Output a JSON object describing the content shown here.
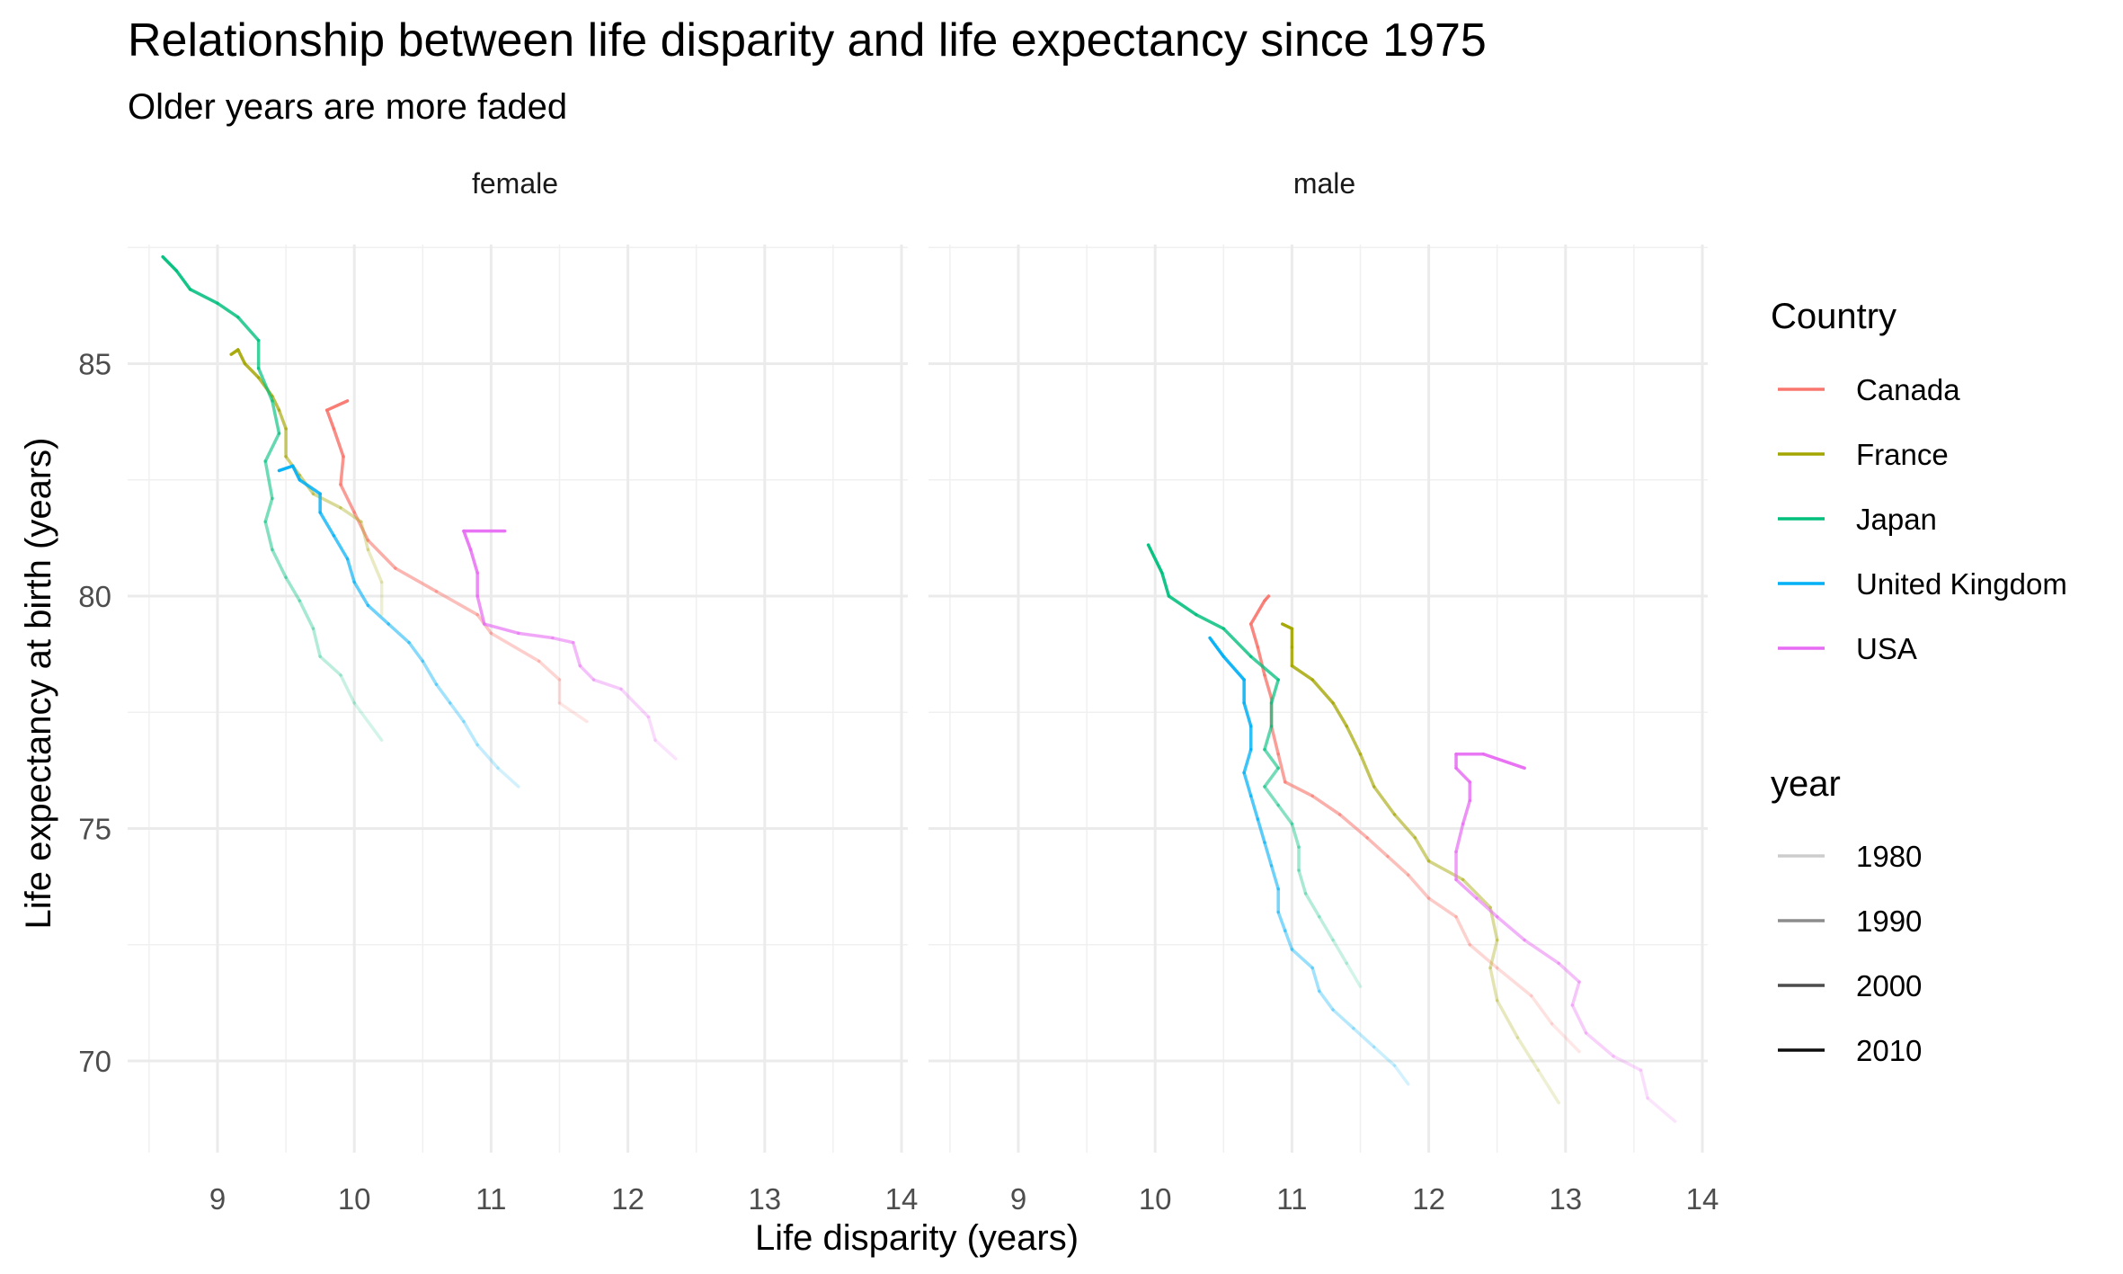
{
  "chart_data": {
    "type": "line",
    "title": "Relationship between life disparity and life expectancy since 1975",
    "subtitle": "Older years are more faded",
    "xlabel": "Life disparity (years)",
    "ylabel": "Life expectancy at birth (years)",
    "xlim": [
      8.5,
      14.0
    ],
    "ylim": [
      68.0,
      88.0
    ],
    "x_ticks": [
      "9",
      "10",
      "11",
      "12",
      "13",
      "14"
    ],
    "y_ticks": [
      "70",
      "75",
      "80",
      "85"
    ],
    "grid": true,
    "legend_position": "right",
    "facets": [
      "female",
      "male"
    ],
    "color_legend": {
      "title": "Country",
      "entries": [
        {
          "label": "Canada",
          "color": "#F8766D"
        },
        {
          "label": "France",
          "color": "#A3A500"
        },
        {
          "label": "Japan",
          "color": "#00BF7D"
        },
        {
          "label": "United Kingdom",
          "color": "#00B0F6"
        },
        {
          "label": "USA",
          "color": "#E76BF3"
        }
      ]
    },
    "alpha_legend": {
      "title": "year",
      "entries": [
        {
          "label": "1980",
          "alpha": 0.2
        },
        {
          "label": "1990",
          "alpha": 0.45
        },
        {
          "label": "2000",
          "alpha": 0.7
        },
        {
          "label": "2010",
          "alpha": 0.95
        }
      ]
    },
    "series": [
      {
        "facet": "female",
        "country": "Canada",
        "points": [
          [
            11.7,
            77.3
          ],
          [
            11.5,
            77.7
          ],
          [
            11.5,
            78.2
          ],
          [
            11.35,
            78.6
          ],
          [
            11.0,
            79.2
          ],
          [
            10.9,
            79.6
          ],
          [
            10.6,
            80.1
          ],
          [
            10.3,
            80.6
          ],
          [
            10.1,
            81.2
          ],
          [
            10.0,
            81.8
          ],
          [
            9.9,
            82.4
          ],
          [
            9.92,
            83.0
          ],
          [
            9.85,
            83.6
          ],
          [
            9.8,
            84.0
          ],
          [
            9.95,
            84.2
          ]
        ]
      },
      {
        "facet": "female",
        "country": "France",
        "points": [
          [
            10.2,
            79.6
          ],
          [
            10.2,
            80.3
          ],
          [
            10.1,
            81.0
          ],
          [
            10.05,
            81.6
          ],
          [
            9.9,
            81.9
          ],
          [
            9.7,
            82.2
          ],
          [
            9.6,
            82.6
          ],
          [
            9.5,
            83.0
          ],
          [
            9.5,
            83.6
          ],
          [
            9.45,
            84.0
          ],
          [
            9.4,
            84.3
          ],
          [
            9.3,
            84.7
          ],
          [
            9.2,
            85.0
          ],
          [
            9.15,
            85.3
          ],
          [
            9.1,
            85.2
          ]
        ]
      },
      {
        "facet": "female",
        "country": "Japan",
        "points": [
          [
            10.2,
            76.9
          ],
          [
            10.0,
            77.7
          ],
          [
            9.9,
            78.3
          ],
          [
            9.75,
            78.7
          ],
          [
            9.7,
            79.3
          ],
          [
            9.6,
            79.9
          ],
          [
            9.5,
            80.4
          ],
          [
            9.4,
            81.0
          ],
          [
            9.35,
            81.6
          ],
          [
            9.4,
            82.1
          ],
          [
            9.35,
            82.9
          ],
          [
            9.45,
            83.5
          ],
          [
            9.4,
            84.2
          ],
          [
            9.3,
            84.9
          ],
          [
            9.3,
            85.5
          ],
          [
            9.15,
            86.0
          ],
          [
            9.0,
            86.3
          ],
          [
            8.8,
            86.6
          ],
          [
            8.7,
            87.0
          ],
          [
            8.6,
            87.3
          ]
        ]
      },
      {
        "facet": "female",
        "country": "United Kingdom",
        "points": [
          [
            11.2,
            75.9
          ],
          [
            11.05,
            76.3
          ],
          [
            10.9,
            76.8
          ],
          [
            10.8,
            77.3
          ],
          [
            10.7,
            77.7
          ],
          [
            10.6,
            78.1
          ],
          [
            10.5,
            78.6
          ],
          [
            10.4,
            79.0
          ],
          [
            10.25,
            79.4
          ],
          [
            10.1,
            79.8
          ],
          [
            10.0,
            80.3
          ],
          [
            9.95,
            80.8
          ],
          [
            9.85,
            81.3
          ],
          [
            9.75,
            81.8
          ],
          [
            9.75,
            82.2
          ],
          [
            9.6,
            82.5
          ],
          [
            9.55,
            82.8
          ],
          [
            9.45,
            82.7
          ]
        ]
      },
      {
        "facet": "female",
        "country": "USA",
        "points": [
          [
            12.35,
            76.5
          ],
          [
            12.2,
            76.9
          ],
          [
            12.15,
            77.4
          ],
          [
            11.95,
            78.0
          ],
          [
            11.75,
            78.2
          ],
          [
            11.65,
            78.5
          ],
          [
            11.6,
            79.0
          ],
          [
            11.45,
            79.1
          ],
          [
            11.2,
            79.2
          ],
          [
            10.95,
            79.4
          ],
          [
            10.9,
            80.0
          ],
          [
            10.9,
            80.5
          ],
          [
            10.85,
            81.0
          ],
          [
            10.8,
            81.4
          ],
          [
            11.1,
            81.4
          ]
        ]
      },
      {
        "facet": "male",
        "country": "Canada",
        "points": [
          [
            13.1,
            70.2
          ],
          [
            12.9,
            70.8
          ],
          [
            12.75,
            71.4
          ],
          [
            12.5,
            72.0
          ],
          [
            12.3,
            72.5
          ],
          [
            12.2,
            73.1
          ],
          [
            12.0,
            73.5
          ],
          [
            11.85,
            74.0
          ],
          [
            11.7,
            74.4
          ],
          [
            11.55,
            74.8
          ],
          [
            11.35,
            75.3
          ],
          [
            11.15,
            75.7
          ],
          [
            10.95,
            76.0
          ],
          [
            10.9,
            76.6
          ],
          [
            10.85,
            77.2
          ],
          [
            10.85,
            77.8
          ],
          [
            10.8,
            78.3
          ],
          [
            10.75,
            78.9
          ],
          [
            10.7,
            79.4
          ],
          [
            10.8,
            79.9
          ],
          [
            10.83,
            80.0
          ]
        ]
      },
      {
        "facet": "male",
        "country": "France",
        "points": [
          [
            12.95,
            69.1
          ],
          [
            12.8,
            69.8
          ],
          [
            12.65,
            70.5
          ],
          [
            12.5,
            71.3
          ],
          [
            12.45,
            72.0
          ],
          [
            12.5,
            72.6
          ],
          [
            12.45,
            73.3
          ],
          [
            12.25,
            73.9
          ],
          [
            12.0,
            74.3
          ],
          [
            11.9,
            74.8
          ],
          [
            11.75,
            75.3
          ],
          [
            11.6,
            75.9
          ],
          [
            11.5,
            76.6
          ],
          [
            11.4,
            77.2
          ],
          [
            11.3,
            77.7
          ],
          [
            11.15,
            78.2
          ],
          [
            11.0,
            78.5
          ],
          [
            11.0,
            78.9
          ],
          [
            11.0,
            79.3
          ],
          [
            10.93,
            79.4
          ]
        ]
      },
      {
        "facet": "male",
        "country": "Japan",
        "points": [
          [
            11.5,
            71.6
          ],
          [
            11.4,
            72.1
          ],
          [
            11.3,
            72.6
          ],
          [
            11.2,
            73.1
          ],
          [
            11.1,
            73.6
          ],
          [
            11.05,
            74.1
          ],
          [
            11.05,
            74.6
          ],
          [
            11.0,
            75.1
          ],
          [
            10.9,
            75.5
          ],
          [
            10.8,
            75.9
          ],
          [
            10.9,
            76.3
          ],
          [
            10.8,
            76.7
          ],
          [
            10.85,
            77.2
          ],
          [
            10.85,
            77.7
          ],
          [
            10.9,
            78.2
          ],
          [
            10.7,
            78.7
          ],
          [
            10.5,
            79.3
          ],
          [
            10.3,
            79.6
          ],
          [
            10.1,
            80.0
          ],
          [
            10.05,
            80.5
          ],
          [
            9.95,
            81.1
          ]
        ]
      },
      {
        "facet": "male",
        "country": "United Kingdom",
        "points": [
          [
            11.85,
            69.5
          ],
          [
            11.75,
            69.9
          ],
          [
            11.6,
            70.3
          ],
          [
            11.45,
            70.7
          ],
          [
            11.3,
            71.1
          ],
          [
            11.2,
            71.5
          ],
          [
            11.15,
            72.0
          ],
          [
            11.0,
            72.4
          ],
          [
            10.95,
            72.8
          ],
          [
            10.9,
            73.2
          ],
          [
            10.9,
            73.7
          ],
          [
            10.85,
            74.2
          ],
          [
            10.8,
            74.7
          ],
          [
            10.75,
            75.2
          ],
          [
            10.7,
            75.7
          ],
          [
            10.65,
            76.2
          ],
          [
            10.7,
            76.7
          ],
          [
            10.7,
            77.2
          ],
          [
            10.65,
            77.7
          ],
          [
            10.65,
            78.2
          ],
          [
            10.5,
            78.7
          ],
          [
            10.4,
            79.1
          ]
        ]
      },
      {
        "facet": "male",
        "country": "USA",
        "points": [
          [
            13.8,
            68.7
          ],
          [
            13.6,
            69.2
          ],
          [
            13.55,
            69.8
          ],
          [
            13.35,
            70.1
          ],
          [
            13.15,
            70.6
          ],
          [
            13.05,
            71.2
          ],
          [
            13.1,
            71.7
          ],
          [
            12.95,
            72.1
          ],
          [
            12.7,
            72.6
          ],
          [
            12.5,
            73.1
          ],
          [
            12.35,
            73.5
          ],
          [
            12.2,
            73.9
          ],
          [
            12.2,
            74.5
          ],
          [
            12.25,
            75.1
          ],
          [
            12.3,
            75.6
          ],
          [
            12.3,
            76.0
          ],
          [
            12.2,
            76.3
          ],
          [
            12.2,
            76.6
          ],
          [
            12.4,
            76.6
          ],
          [
            12.7,
            76.3
          ]
        ]
      }
    ]
  }
}
